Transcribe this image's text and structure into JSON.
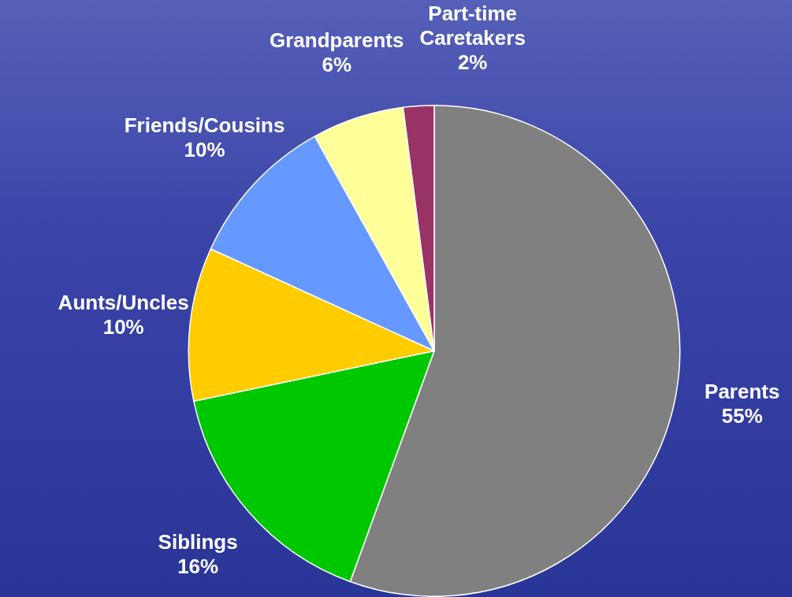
{
  "chart_data": {
    "type": "pie",
    "categories": [
      "Parents",
      "Siblings",
      "Aunts/Uncles",
      "Friends/Cousins",
      "Grandparents",
      "Part-time Caretakers"
    ],
    "values": [
      55,
      16,
      10,
      10,
      6,
      2
    ],
    "value_labels": [
      "55%",
      "16%",
      "10%",
      "10%",
      "6%",
      "2%"
    ],
    "colors": [
      "#808080",
      "#00c800",
      "#ffcc00",
      "#6699ff",
      "#ffff99",
      "#993366"
    ],
    "legend": false
  }
}
